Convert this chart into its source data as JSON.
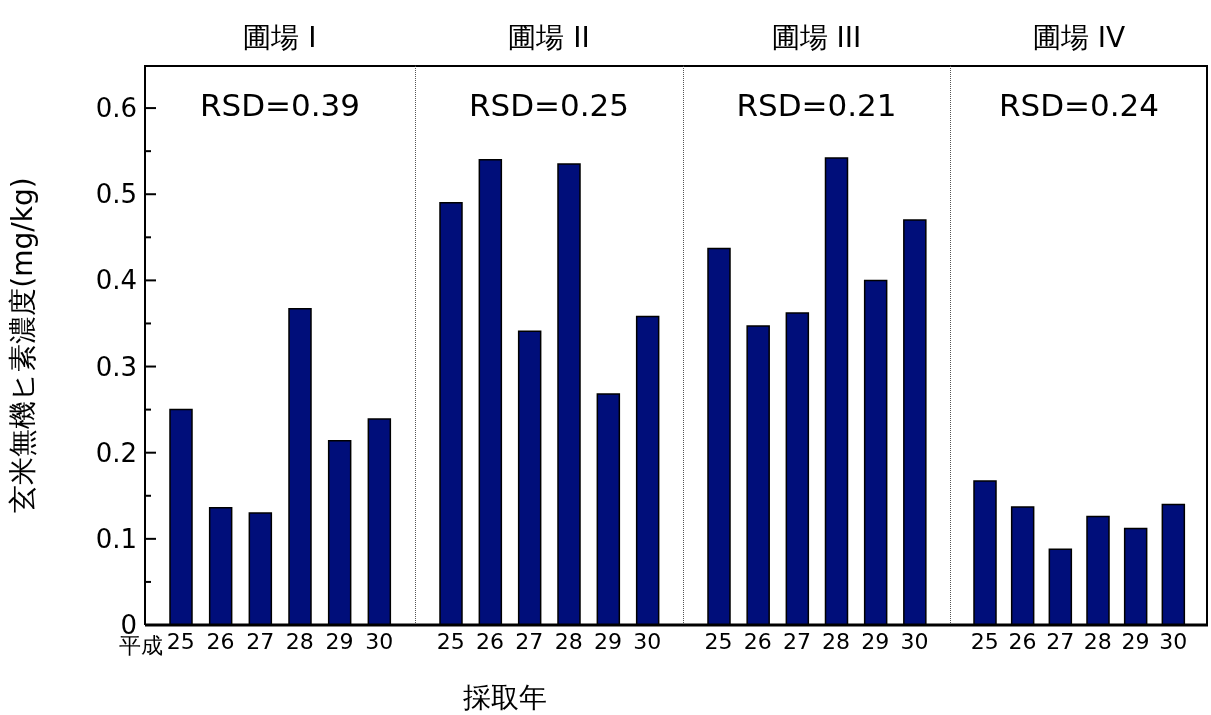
{
  "chart_data": [
    {
      "type": "bar",
      "title": "圃場 I",
      "ylabel": "玄米無機ヒ素濃度(mg/kg)",
      "categories": [
        "25",
        "26",
        "27",
        "28",
        "29",
        "30"
      ],
      "values": [
        0.25,
        0.136,
        0.13,
        0.367,
        0.214,
        0.239
      ],
      "color": "#000e7a",
      "ylim": [
        0,
        0.65
      ],
      "yticks": [
        0,
        {
          "value": 0.05,
          "label": null
        },
        0.1,
        {
          "value": 0.15,
          "label": null
        },
        0.2,
        {
          "value": 0.25,
          "label": null
        },
        0.3,
        {
          "value": 0.35,
          "label": null
        },
        0.4,
        {
          "value": 0.45,
          "label": null
        },
        0.5,
        {
          "value": 0.55,
          "label": null
        },
        0.6
      ],
      "annotations": [
        "RSD=0.39",
        "平成"
      ]
    },
    {
      "type": "bar",
      "title": "圃場 II",
      "xlabel": "採取年",
      "categories": [
        "25",
        "26",
        "27",
        "28",
        "29",
        "30"
      ],
      "values": [
        0.49,
        0.54,
        0.341,
        0.535,
        0.268,
        0.358
      ],
      "color": "#000e7a",
      "ylim": [
        0,
        0.65
      ],
      "tick_labels": "x",
      "annotations": [
        "RSD=0.25"
      ]
    },
    {
      "type": "bar",
      "title": "圃場 III",
      "categories": [
        "25",
        "26",
        "27",
        "28",
        "29",
        "30"
      ],
      "values": [
        0.437,
        0.347,
        0.362,
        0.542,
        0.4,
        0.47
      ],
      "color": "#000e7a",
      "ylim": [
        0,
        0.65
      ],
      "tick_labels": "x",
      "annotations": [
        "RSD=0.21"
      ]
    },
    {
      "type": "bar",
      "title": "圃場 IV",
      "categories": [
        "25",
        "26",
        "27",
        "28",
        "29",
        "30"
      ],
      "values": [
        0.167,
        0.137,
        0.088,
        0.126,
        0.112,
        0.14
      ],
      "color": "#000e7a",
      "ylim": [
        0,
        0.65
      ],
      "tick_labels": "x",
      "annotations": [
        "RSD=0.24"
      ]
    }
  ]
}
